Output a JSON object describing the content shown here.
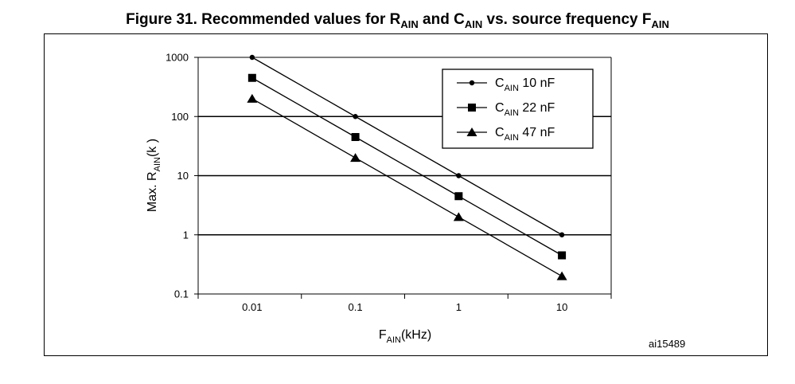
{
  "figure": {
    "title_prefix": "Figure 31. Recommended values for R",
    "title_sub1": "AIN",
    "title_mid": " and C",
    "title_sub2": "AIN",
    "title_mid2": " vs. source frequency F",
    "title_sub3": "AIN",
    "reference": "ai15489"
  },
  "chart_data": {
    "type": "line",
    "x_scale": "log",
    "y_scale": "log",
    "xlim": [
      0.003,
      30
    ],
    "ylim": [
      0.1,
      1000
    ],
    "x_ticks": [
      "0.01",
      "0.1",
      "1",
      "10"
    ],
    "y_ticks": [
      "0.1",
      "1",
      "10",
      "100",
      "1000"
    ],
    "xlabel": {
      "main": "F",
      "sub": "AIN",
      "rest": "(kHz)"
    },
    "ylabel": {
      "main": "Max. R",
      "sub": "AIN",
      "rest": "(k   )"
    },
    "grid": "horizontal",
    "legend_position": "top-right",
    "x": [
      0.01,
      0.1,
      1,
      10
    ],
    "series": [
      {
        "name_main": "C",
        "name_sub": "AIN",
        "name_rest": " 10 nF",
        "marker": "circle",
        "values": [
          1000,
          100,
          10,
          1
        ]
      },
      {
        "name_main": "C",
        "name_sub": "AIN",
        "name_rest": " 22 nF",
        "marker": "square",
        "values": [
          450,
          45,
          4.5,
          0.45
        ]
      },
      {
        "name_main": "C",
        "name_sub": "AIN",
        "name_rest": " 47 nF",
        "marker": "triangle",
        "values": [
          200,
          20,
          2,
          0.2
        ]
      }
    ]
  }
}
